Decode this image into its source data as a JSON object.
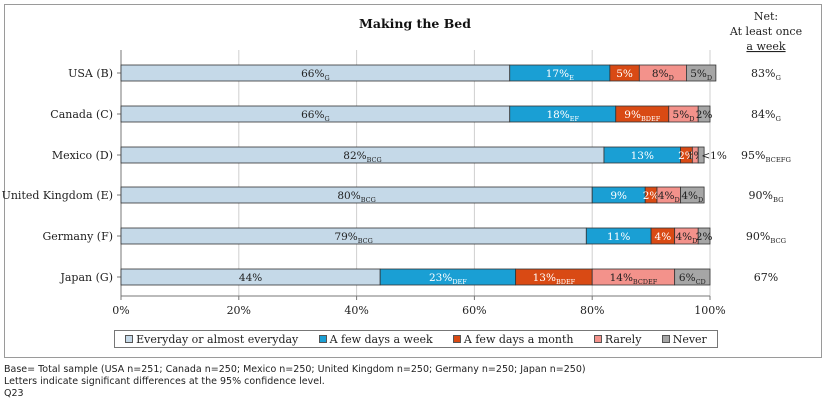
{
  "chart_data": {
    "type": "bar",
    "orientation": "horizontal",
    "stacked": true,
    "title": "Making the Bed",
    "net_header": [
      "Net:",
      "At least once",
      "a week"
    ],
    "categories": [
      "USA (B)",
      "Canada (C)",
      "Mexico (D)",
      "United Kingdom (E)",
      "Germany (F)",
      "Japan (G)"
    ],
    "series": [
      {
        "name": "Everyday or almost everyday",
        "color": "#c5d9e8",
        "values": [
          66,
          66,
          82,
          80,
          79,
          44
        ],
        "labels": [
          "66%",
          "66%",
          "82%",
          "80%",
          "79%",
          "44%"
        ],
        "subs": [
          "G",
          "G",
          "BCG",
          "BCG",
          "BCG",
          ""
        ]
      },
      {
        "name": "A few days a week",
        "color": "#1a9fd4",
        "values": [
          17,
          18,
          13,
          9,
          11,
          23
        ],
        "labels": [
          "17%",
          "18%",
          "13%",
          "9%",
          "11%",
          "23%"
        ],
        "subs": [
          "E",
          "EF",
          "",
          "",
          "",
          "DEF"
        ]
      },
      {
        "name": "A few days a month",
        "color": "#d94a14",
        "values": [
          5,
          9,
          2,
          2,
          4,
          13
        ],
        "labels": [
          "5%",
          "9%",
          "2%",
          "2%",
          "4%",
          "13%"
        ],
        "subs": [
          "",
          "BDEF",
          "",
          "",
          "",
          "BDEF"
        ]
      },
      {
        "name": "Rarely",
        "color": "#f3928b",
        "values": [
          8,
          5,
          1,
          4,
          4,
          14
        ],
        "labels": [
          "8%",
          "5%",
          "1%",
          "4%",
          "4%",
          "14%"
        ],
        "subs": [
          "D",
          "D",
          "",
          "D",
          "D",
          "BCDEF"
        ]
      },
      {
        "name": "Never",
        "color": "#a6a6a6",
        "values": [
          5,
          2,
          1,
          4,
          2,
          6
        ],
        "labels": [
          "5%",
          "2%",
          "<1%",
          "4%",
          "2%",
          "6%"
        ],
        "subs": [
          "D",
          "",
          "",
          "D",
          "",
          "CD"
        ]
      }
    ],
    "net": {
      "values": [
        "83%",
        "84%",
        "95%",
        "90%",
        "90%",
        "67%"
      ],
      "subs": [
        "G",
        "G",
        "BCEFG",
        "BG",
        "BCG",
        ""
      ]
    },
    "xlim": [
      0,
      100
    ],
    "xticks": [
      "0%",
      "20%",
      "40%",
      "60%",
      "80%",
      "100%"
    ],
    "legend_position": "bottom",
    "grid": true
  },
  "footnotes": [
    "Base= Total sample (USA n=251; Canada n=250; Mexico n=250; United Kingdom n=250; Germany n=250; Japan n=250)",
    "Letters indicate significant differences at the 95% confidence level.",
    "Q23"
  ]
}
